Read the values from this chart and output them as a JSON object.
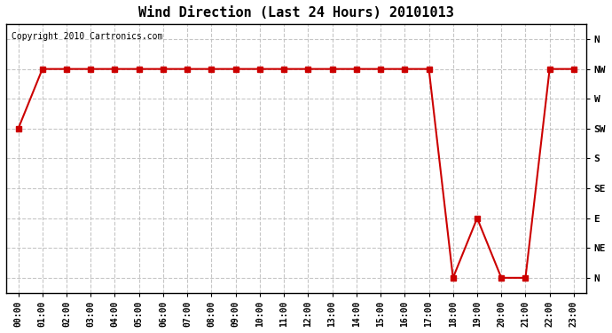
{
  "title": "Wind Direction (Last 24 Hours) 20101013",
  "copyright_text": "Copyright 2010 Cartronics.com",
  "background_color": "#ffffff",
  "plot_bg_color": "#ffffff",
  "grid_color": "#c0c0c0",
  "line_color": "#cc0000",
  "marker_color": "#cc0000",
  "x_labels": [
    "00:00",
    "01:00",
    "02:00",
    "03:00",
    "04:00",
    "05:00",
    "06:00",
    "07:00",
    "08:00",
    "09:00",
    "10:00",
    "11:00",
    "12:00",
    "13:00",
    "14:00",
    "15:00",
    "16:00",
    "17:00",
    "18:00",
    "19:00",
    "20:00",
    "21:00",
    "22:00",
    "23:00"
  ],
  "y_ticks": [
    0,
    1,
    2,
    3,
    4,
    5,
    6,
    7,
    8
  ],
  "y_labels": [
    "N",
    "NE",
    "E",
    "SE",
    "S",
    "SW",
    "W",
    "NW",
    "N"
  ],
  "data_y": [
    5,
    7,
    7,
    7,
    7,
    7,
    7,
    7,
    7,
    7,
    7,
    7,
    7,
    7,
    7,
    7,
    7,
    7,
    0,
    2,
    0,
    0,
    7,
    7
  ],
  "ylim": [
    -0.5,
    8.5
  ],
  "xlim": [
    -0.5,
    23.5
  ]
}
